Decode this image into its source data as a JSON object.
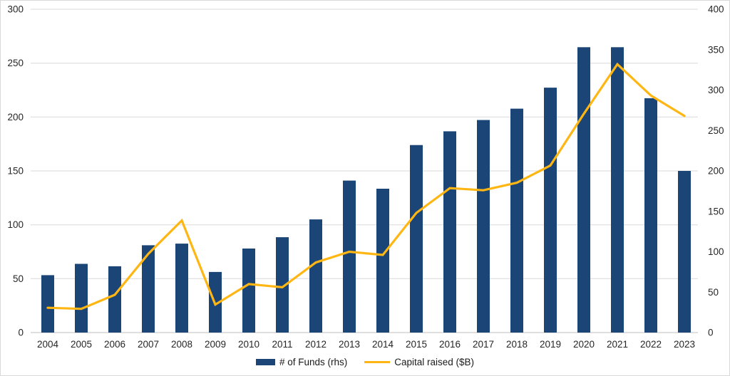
{
  "chart_data": {
    "type": "combo",
    "title": "",
    "categories": [
      "2004",
      "2005",
      "2006",
      "2007",
      "2008",
      "2009",
      "2010",
      "2011",
      "2012",
      "2013",
      "2014",
      "2015",
      "2016",
      "2017",
      "2018",
      "2019",
      "2020",
      "2021",
      "2022",
      "2023"
    ],
    "series": [
      {
        "name": "# of Funds (rhs)",
        "type": "bar",
        "axis": "right",
        "color": "#1B4577",
        "values": [
          71,
          85,
          82,
          108,
          110,
          75,
          104,
          118,
          140,
          188,
          178,
          232,
          249,
          263,
          277,
          303,
          353,
          353,
          290,
          200
        ]
      },
      {
        "name": "Capital raised ($B)",
        "type": "line",
        "axis": "left",
        "color": "#FFB612",
        "values": [
          23,
          22,
          35,
          73,
          104,
          26,
          45,
          42,
          65,
          75,
          72,
          111,
          134,
          132,
          139,
          155,
          203,
          249,
          220,
          201
        ]
      }
    ],
    "axes": {
      "left": {
        "min": 0,
        "max": 300,
        "step": 50,
        "ticks": [
          0,
          50,
          100,
          150,
          200,
          250,
          300
        ]
      },
      "right": {
        "min": 0,
        "max": 400,
        "step": 50,
        "ticks": [
          0,
          50,
          100,
          150,
          200,
          250,
          300,
          350,
          400
        ]
      }
    },
    "grid": "horizontal",
    "legend_position": "bottom",
    "xlabel": "",
    "ylabel_left": "",
    "ylabel_right": ""
  },
  "colors": {
    "background": "#FFFFFF",
    "gridline": "#D9D9D9",
    "baseline": "#BFBFBF",
    "tick_text": "#262626",
    "bar": "#1B4577",
    "line": "#FFB612"
  }
}
